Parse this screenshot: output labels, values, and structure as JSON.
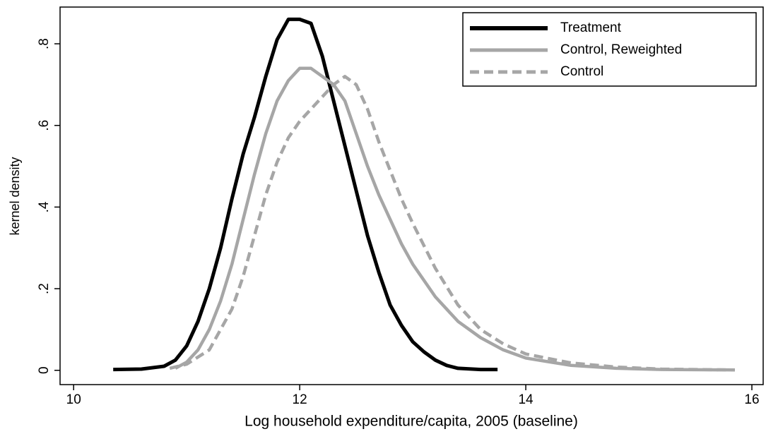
{
  "chart_data": {
    "type": "line",
    "x_label": "Log household expenditure/capita, 2005 (baseline)",
    "y_label": "kernel density",
    "xlim": [
      9.88,
      16.1
    ],
    "ylim": [
      -0.035,
      0.89
    ],
    "xticks": [
      10,
      12,
      14,
      16
    ],
    "yticks": [
      0,
      {
        "value": 0.2,
        "label": ".2"
      },
      {
        "value": 0.4,
        "label": ".4"
      },
      {
        "value": 0.6,
        "label": ".6"
      },
      {
        "value": 0.8,
        "label": ".8"
      }
    ],
    "legend": "top-right",
    "series": [
      {
        "name": "Treatment",
        "color": "#000000",
        "dashed": false,
        "x": [
          10.35,
          10.6,
          10.8,
          10.9,
          11.0,
          11.1,
          11.2,
          11.3,
          11.4,
          11.5,
          11.6,
          11.7,
          11.8,
          11.9,
          12.0,
          12.1,
          12.2,
          12.3,
          12.4,
          12.5,
          12.6,
          12.7,
          12.8,
          12.9,
          13.0,
          13.1,
          13.2,
          13.3,
          13.4,
          13.6,
          13.75
        ],
        "values": [
          0.002,
          0.003,
          0.01,
          0.025,
          0.06,
          0.12,
          0.2,
          0.3,
          0.42,
          0.53,
          0.62,
          0.72,
          0.81,
          0.86,
          0.86,
          0.85,
          0.77,
          0.66,
          0.55,
          0.44,
          0.33,
          0.24,
          0.16,
          0.11,
          0.07,
          0.045,
          0.025,
          0.012,
          0.005,
          0.002,
          0.002
        ]
      },
      {
        "name": "Control, Reweighted",
        "color": "#a6a6a6",
        "dashed": false,
        "x": [
          10.9,
          11.0,
          11.1,
          11.2,
          11.3,
          11.4,
          11.5,
          11.6,
          11.7,
          11.8,
          11.9,
          12.0,
          12.1,
          12.2,
          12.3,
          12.4,
          12.5,
          12.6,
          12.7,
          12.8,
          12.9,
          13.0,
          13.2,
          13.4,
          13.6,
          13.8,
          14.0,
          14.4,
          14.8,
          15.2,
          15.85
        ],
        "values": [
          0.005,
          0.02,
          0.05,
          0.1,
          0.17,
          0.26,
          0.37,
          0.48,
          0.58,
          0.66,
          0.71,
          0.74,
          0.74,
          0.72,
          0.7,
          0.66,
          0.58,
          0.5,
          0.43,
          0.37,
          0.31,
          0.26,
          0.18,
          0.12,
          0.08,
          0.05,
          0.03,
          0.012,
          0.005,
          0.002,
          0.001
        ]
      },
      {
        "name": "Control",
        "color": "#a6a6a6",
        "dashed": true,
        "x": [
          10.85,
          11.0,
          11.2,
          11.4,
          11.5,
          11.6,
          11.7,
          11.8,
          11.9,
          12.0,
          12.1,
          12.2,
          12.3,
          12.4,
          12.5,
          12.6,
          12.7,
          12.8,
          12.9,
          13.0,
          13.2,
          13.4,
          13.6,
          13.8,
          14.0,
          14.4,
          14.8,
          15.2,
          15.8
        ],
        "values": [
          0.005,
          0.015,
          0.05,
          0.15,
          0.23,
          0.33,
          0.43,
          0.51,
          0.57,
          0.61,
          0.64,
          0.67,
          0.7,
          0.72,
          0.7,
          0.64,
          0.56,
          0.49,
          0.42,
          0.36,
          0.25,
          0.16,
          0.1,
          0.065,
          0.04,
          0.018,
          0.008,
          0.003,
          0.001
        ]
      }
    ]
  }
}
